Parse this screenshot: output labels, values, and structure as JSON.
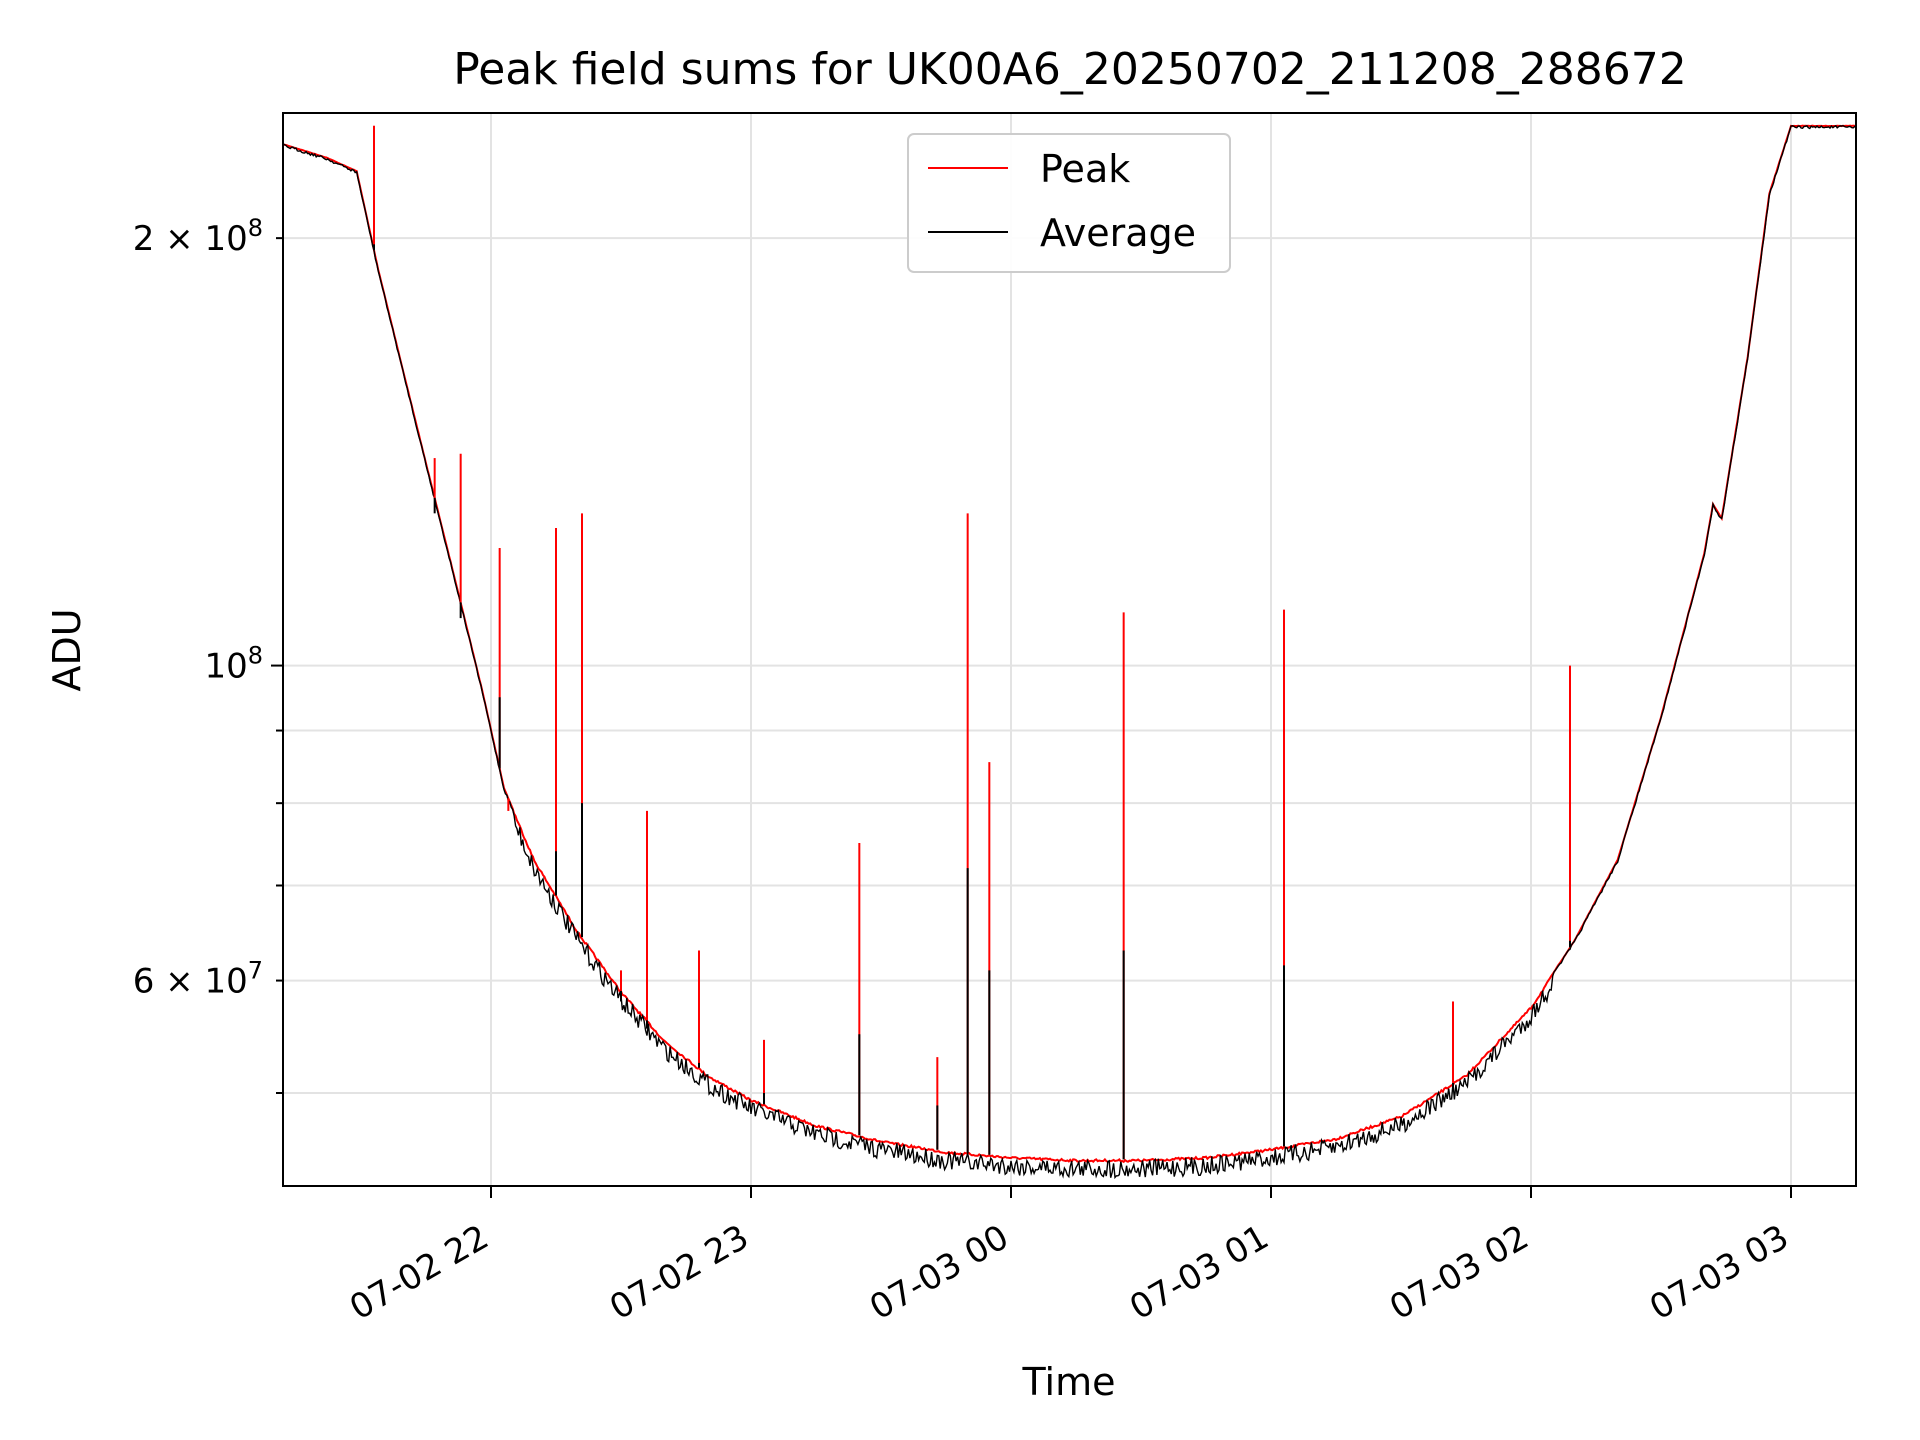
{
  "chart_data": {
    "type": "line",
    "title": "Peak field sums for UK00A6_20250702_211208_288672",
    "xlabel": "Time",
    "ylabel": "ADU",
    "yscale": "log",
    "grid": true,
    "legend_placement": "upper center",
    "xlim": [
      "2025-07-02 21:12",
      "2025-07-03 03:15"
    ],
    "ylim": [
      43000000,
      245000000
    ],
    "x_ticks": [
      {
        "value": "2025-07-02 22:00",
        "label": "07-02 22"
      },
      {
        "value": "2025-07-02 23:00",
        "label": "07-02 23"
      },
      {
        "value": "2025-07-03 00:00",
        "label": "07-03 00"
      },
      {
        "value": "2025-07-03 01:00",
        "label": "07-03 01"
      },
      {
        "value": "2025-07-03 02:00",
        "label": "07-03 02"
      },
      {
        "value": "2025-07-03 03:00",
        "label": "07-03 03"
      }
    ],
    "y_ticks_major": [
      {
        "value": 100000000,
        "label": "10^8"
      }
    ],
    "y_ticks_minor": [
      {
        "value": 50000000,
        "label": ""
      },
      {
        "value": 60000000,
        "label": "6×10^7"
      },
      {
        "value": 70000000,
        "label": ""
      },
      {
        "value": 80000000,
        "label": ""
      },
      {
        "value": 90000000,
        "label": ""
      },
      {
        "value": 200000000,
        "label": "2×10^8"
      }
    ],
    "baseline": [
      [
        "2025-07-02 21:12",
        233000000
      ],
      [
        "2025-07-02 21:22",
        228000000
      ],
      [
        "2025-07-02 21:29",
        223000000
      ],
      [
        "2025-07-02 21:34",
        190000000
      ],
      [
        "2025-07-02 21:40",
        160000000
      ],
      [
        "2025-07-02 21:46",
        135000000
      ],
      [
        "2025-07-02 21:52",
        114000000
      ],
      [
        "2025-07-02 21:58",
        96000000
      ],
      [
        "2025-07-02 22:03",
        82000000
      ],
      [
        "2025-07-02 22:10",
        73000000
      ],
      [
        "2025-07-02 22:20",
        65000000
      ],
      [
        "2025-07-02 22:30",
        59000000
      ],
      [
        "2025-07-02 22:40",
        54500000
      ],
      [
        "2025-07-02 22:50",
        51500000
      ],
      [
        "2025-07-02 23:00",
        49500000
      ],
      [
        "2025-07-02 23:15",
        47500000
      ],
      [
        "2025-07-02 23:30",
        46300000
      ],
      [
        "2025-07-02 23:45",
        45500000
      ],
      [
        "2025-07-03 00:00",
        45100000
      ],
      [
        "2025-07-03 00:15",
        44900000
      ],
      [
        "2025-07-03 00:30",
        44900000
      ],
      [
        "2025-07-03 00:45",
        45100000
      ],
      [
        "2025-07-03 01:00",
        45700000
      ],
      [
        "2025-07-03 01:15",
        46500000
      ],
      [
        "2025-07-03 01:30",
        48200000
      ],
      [
        "2025-07-03 01:45",
        51500000
      ],
      [
        "2025-07-03 02:00",
        57500000
      ],
      [
        "2025-07-03 02:10",
        64000000
      ],
      [
        "2025-07-03 02:20",
        73000000
      ],
      [
        "2025-07-03 02:30",
        92000000
      ],
      [
        "2025-07-03 02:40",
        120000000
      ],
      [
        "2025-07-03 02:42",
        130000000
      ],
      [
        "2025-07-03 02:44",
        127000000
      ],
      [
        "2025-07-03 02:50",
        165000000
      ],
      [
        "2025-07-03 02:55",
        215000000
      ],
      [
        "2025-07-03 03:00",
        240000000
      ],
      [
        "2025-07-03 03:15",
        240000000
      ]
    ],
    "series": [
      {
        "name": "Peak",
        "color": "#ff0000",
        "spikes": [
          [
            "2025-07-02 21:33",
            240000000
          ],
          [
            "2025-07-02 21:47",
            140000000
          ],
          [
            "2025-07-02 21:53",
            141000000
          ],
          [
            "2025-07-02 22:02",
            121000000
          ],
          [
            "2025-07-02 22:04",
            79000000
          ],
          [
            "2025-07-02 22:15",
            125000000
          ],
          [
            "2025-07-02 22:21",
            128000000
          ],
          [
            "2025-07-02 22:30",
            61000000
          ],
          [
            "2025-07-02 22:36",
            79000000
          ],
          [
            "2025-07-02 22:48",
            63000000
          ],
          [
            "2025-07-02 23:03",
            54500000
          ],
          [
            "2025-07-02 23:25",
            75000000
          ],
          [
            "2025-07-02 23:43",
            53000000
          ],
          [
            "2025-07-02 23:50",
            128000000
          ],
          [
            "2025-07-02 23:55",
            85500000
          ],
          [
            "2025-07-03 00:26",
            109000000
          ],
          [
            "2025-07-03 01:03",
            109500000
          ],
          [
            "2025-07-03 01:42",
            58000000
          ],
          [
            "2025-07-03 02:09",
            100000000
          ]
        ]
      },
      {
        "name": "Average",
        "color": "#000000",
        "spikes": [
          [
            "2025-07-02 21:33",
            198000000
          ],
          [
            "2025-07-02 21:47",
            128000000
          ],
          [
            "2025-07-02 21:53",
            108000000
          ],
          [
            "2025-07-02 22:02",
            95000000
          ],
          [
            "2025-07-02 22:15",
            74000000
          ],
          [
            "2025-07-02 22:21",
            80000000
          ],
          [
            "2025-07-02 22:30",
            58000000
          ],
          [
            "2025-07-02 22:36",
            55500000
          ],
          [
            "2025-07-02 22:48",
            52500000
          ],
          [
            "2025-07-02 23:03",
            50000000
          ],
          [
            "2025-07-02 23:25",
            55000000
          ],
          [
            "2025-07-02 23:43",
            49000000
          ],
          [
            "2025-07-02 23:50",
            72000000
          ],
          [
            "2025-07-02 23:55",
            61000000
          ],
          [
            "2025-07-03 00:26",
            63000000
          ],
          [
            "2025-07-03 01:03",
            61500000
          ],
          [
            "2025-07-03 01:42",
            50500000
          ],
          [
            "2025-07-03 02:09",
            64000000
          ]
        ]
      }
    ]
  }
}
